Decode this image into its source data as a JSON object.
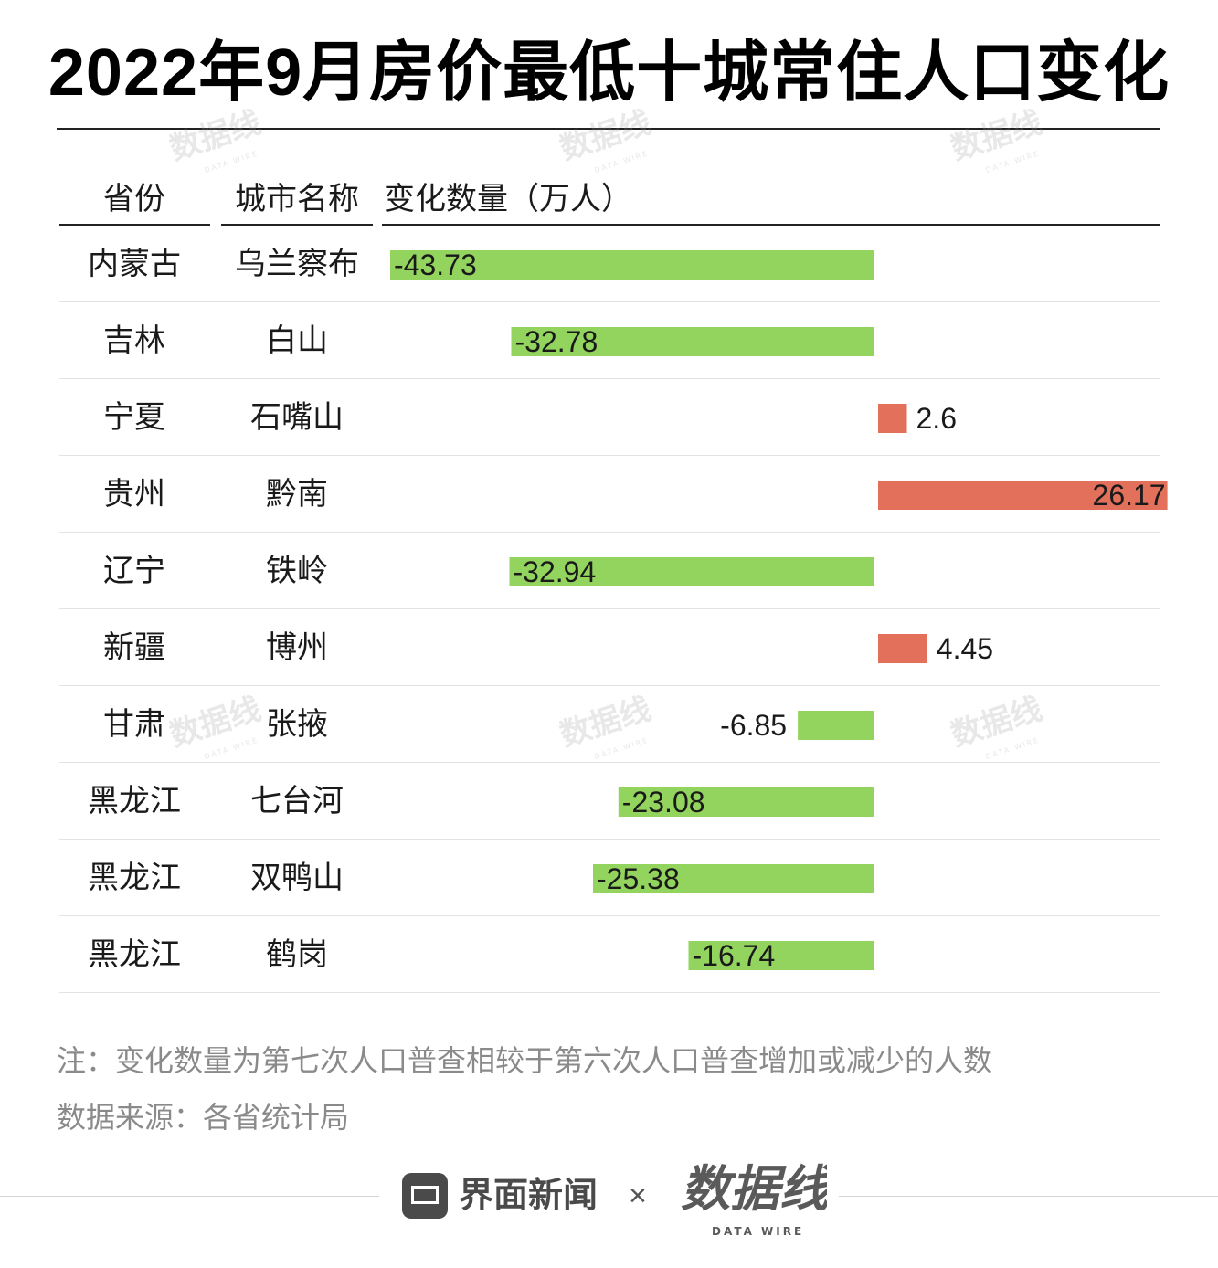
{
  "title": "2022年9月房价最低十城常住人口变化",
  "headers": {
    "province": "省份",
    "city": "城市名称",
    "change": "变化数量（万人）"
  },
  "chart_data": {
    "type": "bar",
    "orientation": "horizontal",
    "title": "2022年9月房价最低十城常住人口变化",
    "columns": [
      "省份",
      "城市名称",
      "变化数量（万人）"
    ],
    "categories": [
      "乌兰察布",
      "白山",
      "石嘴山",
      "黔南",
      "铁岭",
      "博州",
      "张掖",
      "七台河",
      "双鸭山",
      "鹤岗"
    ],
    "provinces": [
      "内蒙古",
      "吉林",
      "宁夏",
      "贵州",
      "辽宁",
      "新疆",
      "甘肃",
      "黑龙江",
      "黑龙江",
      "黑龙江"
    ],
    "values": [
      -43.73,
      -32.78,
      2.6,
      26.17,
      -32.94,
      4.45,
      -6.85,
      -23.08,
      -25.38,
      -16.74
    ],
    "labels": [
      "-43.73",
      "-32.78",
      "2.6",
      "26.17",
      "-32.94",
      "4.45",
      "-6.85",
      "-23.08",
      "-25.38",
      "-16.74"
    ],
    "colors": {
      "negative": "#93d45f",
      "positive": "#e2705a"
    },
    "xlim": [
      -43.73,
      26.17
    ]
  },
  "notes": {
    "note": "注：变化数量为第七次人口普查相较于第六次人口普查增加或减少的人数",
    "source": "数据来源：各省统计局"
  },
  "footer": {
    "brand": "界面新闻",
    "times": "×",
    "logo_text": "数据线",
    "logo_sub": "DATA WIRE",
    "watermark_text": "数据线",
    "watermark_sub": "DATA WIRE"
  }
}
